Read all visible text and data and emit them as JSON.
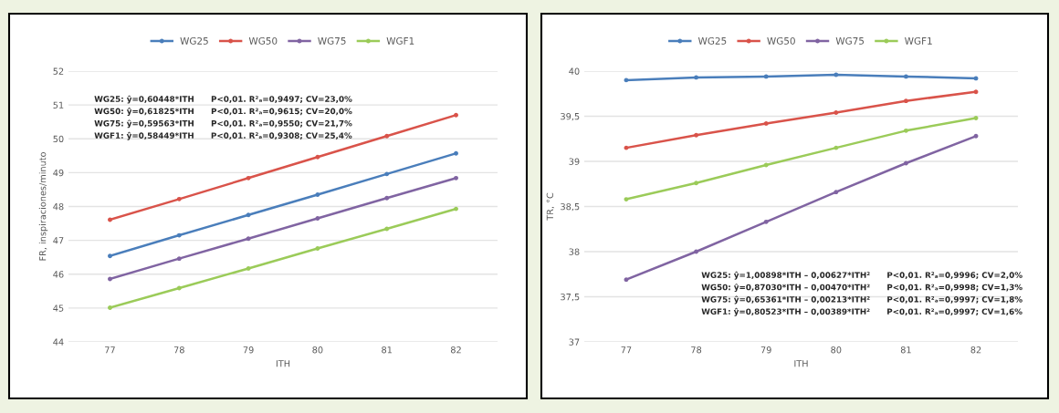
{
  "chart_data": [
    {
      "type": "line",
      "xlabel": "ITH",
      "ylabel": "FR, inspiraciones/minuto",
      "categories": [
        "77",
        "78",
        "79",
        "80",
        "81",
        "82"
      ],
      "series": [
        {
          "name": "WG25",
          "color": "#4a7ebb",
          "values": [
            46.54,
            47.15,
            47.75,
            48.35,
            48.96,
            49.57
          ]
        },
        {
          "name": "WG50",
          "color": "#d9534a",
          "values": [
            47.61,
            48.22,
            48.84,
            49.46,
            50.08,
            50.7
          ]
        },
        {
          "name": "WG75",
          "color": "#8064a2",
          "values": [
            45.86,
            46.46,
            47.05,
            47.65,
            48.25,
            48.84
          ]
        },
        {
          "name": "WGF1",
          "color": "#9bcb59",
          "values": [
            45.01,
            45.59,
            46.17,
            46.76,
            47.34,
            47.93
          ]
        }
      ],
      "ylim": [
        44,
        52
      ],
      "yticks": [
        44,
        45,
        46,
        47,
        48,
        49,
        50,
        51,
        52
      ],
      "grid": "y",
      "legend": "top",
      "marker": "circle",
      "annotations": [
        "WG25: ŷ=0,60448*ITH      P<0,01. R²ₐ=0,9497; CV=23,0%",
        "WG50: ŷ=0,61825*ITH      P<0,01. R²ₐ=0,9615; CV=20,0%",
        "WG75: ŷ=0,59563*ITH      P<0,01. R²ₐ=0,9550; CV=21,7%",
        "WGF1: ŷ=0,58449*ITH      P<0,01. R²ₐ=0,9308; CV=25,4%"
      ]
    },
    {
      "type": "line",
      "xlabel": "ITH",
      "ylabel": "TR, °C",
      "categories": [
        "77",
        "78",
        "79",
        "80",
        "81",
        "82"
      ],
      "series": [
        {
          "name": "WG25",
          "color": "#4a7ebb",
          "values": [
            39.9,
            39.93,
            39.94,
            39.96,
            39.94,
            39.92
          ]
        },
        {
          "name": "WG50",
          "color": "#d9534a",
          "values": [
            39.15,
            39.29,
            39.42,
            39.54,
            39.67,
            39.77
          ]
        },
        {
          "name": "WG75",
          "color": "#8064a2",
          "values": [
            37.69,
            38.0,
            38.33,
            38.66,
            38.98,
            39.28
          ]
        },
        {
          "name": "WGF1",
          "color": "#9bcb59",
          "values": [
            38.58,
            38.76,
            38.96,
            39.15,
            39.34,
            39.48
          ]
        }
      ],
      "ylim": [
        37,
        40
      ],
      "yticks": [
        37,
        {
          "value": 37.5,
          "label": "37,5"
        },
        38,
        {
          "value": 38.5,
          "label": "38,5"
        },
        39,
        {
          "value": 39.5,
          "label": "39,5"
        },
        40
      ],
      "grid": "y",
      "legend": "top",
      "marker": "circle",
      "annotations": [
        "WG25: ŷ=1,00898*ITH – 0,00627*ITH²      P<0,01. R²ₐ=0,9996; CV=2,0%",
        "WG50: ŷ=0,87030*ITH – 0,00470*ITH²      P<0,01. R²ₐ=0,9998; CV=1,3%",
        "WG75: ŷ=0,65361*ITH – 0,00213*ITH²      P<0,01. R²ₐ=0,9997; CV=1,8%",
        "WGF1: ŷ=0,80523*ITH – 0,00389*ITH²      P<0,01. R²ₐ=0,9997; CV=1,6%"
      ]
    }
  ]
}
